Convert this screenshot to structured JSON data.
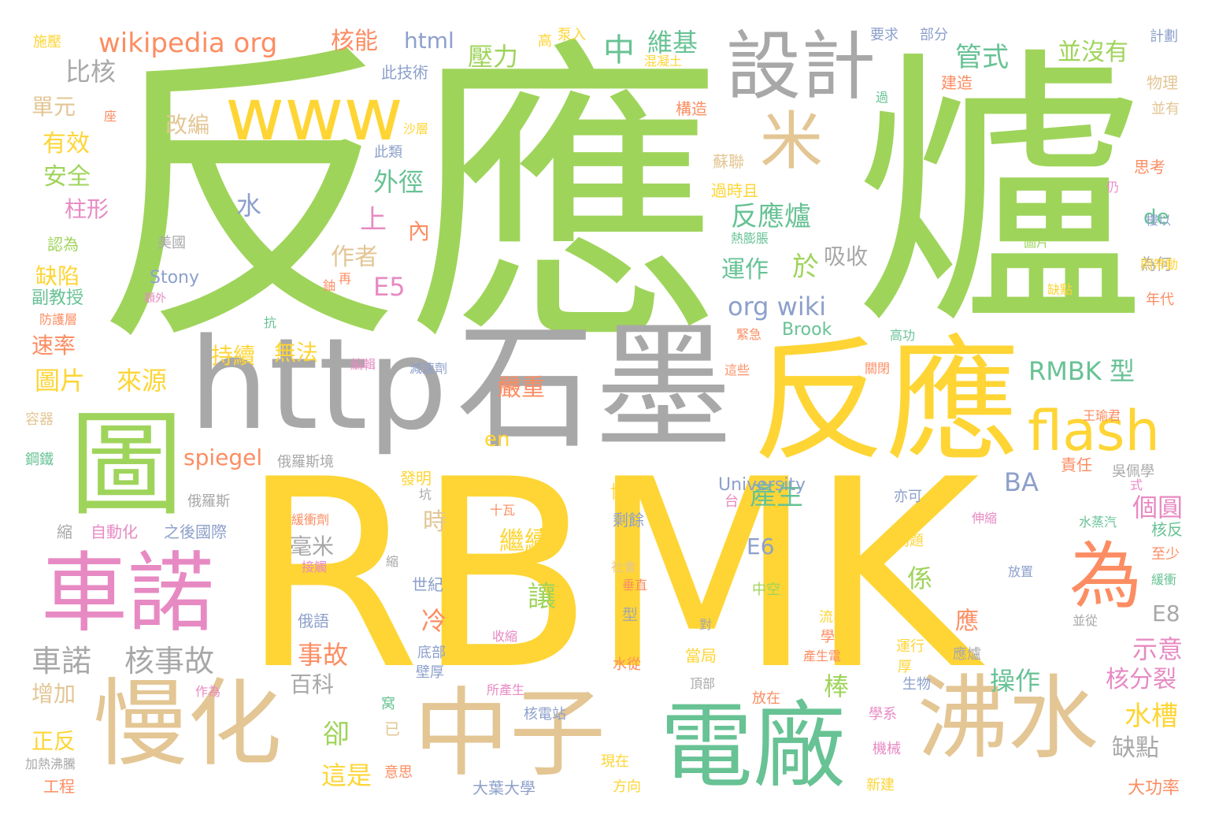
{
  "colors": {
    "green": "#9fd45b",
    "yellow": "#fed535",
    "gray": "#a8a8a8",
    "tan": "#e3c694",
    "pink": "#e78ac3",
    "teal": "#67c294",
    "orange": "#fc8d62",
    "blue": "#8da0cb"
  },
  "words": [
    "反應",
    "爐",
    "RBMK",
    "石墨",
    "http",
    "反應",
    "圖",
    "www",
    "車諾",
    "慢化",
    "中子",
    "電廠",
    "沸水",
    "設計",
    "flash",
    "為",
    "米",
    "wikipedia org",
    "核能",
    "html",
    "壓力",
    "中",
    "維基",
    "管式",
    "並沒有",
    "比核",
    "單元",
    "有效",
    "安全",
    "柱形",
    "水",
    "外徑",
    "反應爐",
    "吸收",
    "上",
    "內",
    "作者",
    "運作",
    "於",
    "org wiki",
    "E5",
    "圖片",
    "來源",
    "持續",
    "無法",
    "RMBK 型",
    "spiegel",
    "嚴重",
    "產生",
    "E6",
    "BA",
    "繼續",
    "時",
    "毫米",
    "係",
    "車諾",
    "核事故",
    "事故",
    "讓",
    "冷",
    "卻",
    "這是",
    "百科",
    "棒",
    "操作",
    "應",
    "水槽",
    "個圓",
    "缺點",
    "示意",
    "核分裂",
    "E8",
    "改編",
    "缺陷",
    "速率",
    "圖片",
    "增加",
    "正反",
    "Stony",
    "Brook",
    "University",
    "en",
    "de",
    "此技術",
    "此類",
    "美國",
    "施壓",
    "高",
    "泵入",
    "要求",
    "部分",
    "計劃",
    "混凝土",
    "建造",
    "物理",
    "並有",
    "思考",
    "蘇聯",
    "過時且",
    "構造",
    "認為",
    "副教授",
    "為何",
    "則帶動",
    "年代",
    "高功",
    "緊急",
    "這些",
    "王瑜君",
    "吳佩學",
    "容器",
    "鋼鐵",
    "俄羅斯境",
    "發明",
    "博士",
    "台",
    "十瓦",
    "剩餘",
    "缺點",
    "自動化",
    "之後國際",
    "縮",
    "緩衝劑",
    "接觸",
    "社會",
    "垂直",
    "中空",
    "萬",
    "世紀",
    "俄語",
    "型",
    "當局",
    "流出",
    "學",
    "水從",
    "底部",
    "壁厚",
    "收縮",
    "問題",
    "運行",
    "厚",
    "生物",
    "放在",
    "頂部",
    "所產生",
    "核電站",
    "現在",
    "方向",
    "學系",
    "機械",
    "大葉大學",
    "新建",
    "意思",
    "已",
    "窝",
    "作為",
    "工程",
    "加熱沸騰",
    "大功率",
    "縮",
    "伸縮",
    "水蒸汽",
    "核反",
    "至少",
    "緩衝",
    "放置",
    "並從",
    "責任",
    "亦可",
    "關閉",
    "減速劑",
    "內徑",
    "編輯",
    "抗",
    "座",
    "沙層",
    "過",
    "仍",
    "熱膨脹",
    "樓以",
    "防護層",
    "額外",
    "鈾",
    "再",
    "坑",
    "式",
    "對",
    "產生電",
    "應爐",
    "俄羅斯"
  ]
}
